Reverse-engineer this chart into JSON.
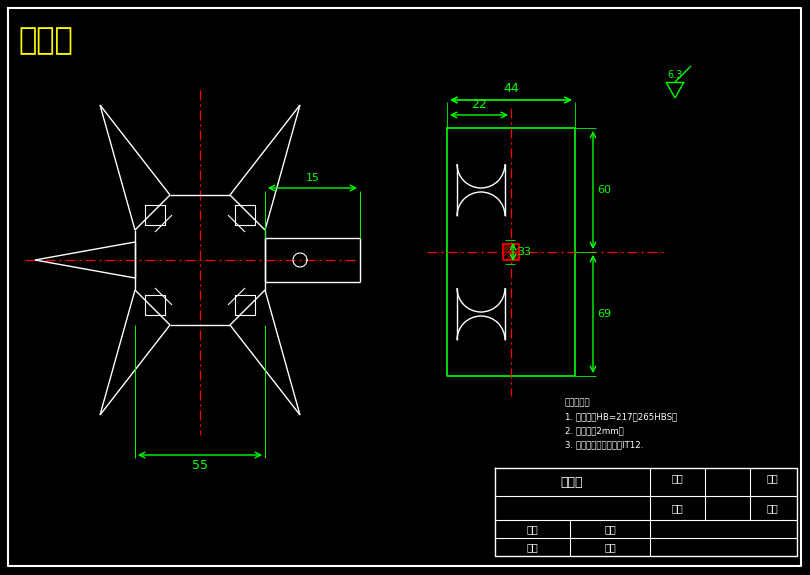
{
  "title": "破袋刀",
  "bg_color": "#000000",
  "white": "#ffffff",
  "green": "#00ff00",
  "yellow": "#ffff00",
  "red": "#ff0000",
  "tech_text": [
    "技术要求：",
    "1. 调质处理HB=217－265HBS；",
    "2. 圆角半径2mm；",
    "3. 未注尺寸偏差外精度IT12."
  ],
  "title_block": {
    "part_name": "破袋刀",
    "ratio": "比例",
    "date": "日期",
    "material": "材料",
    "grade": "成绩",
    "designer": "姓名",
    "sign": "签题",
    "reviewer": "审核",
    "student_id": "学号"
  },
  "surface_finish": "6.3",
  "dim_55": "55",
  "dim_15": "15",
  "dim_44": "44",
  "dim_22": "22",
  "dim_33": "33",
  "dim_right_top": "60",
  "dim_right_bot": "69"
}
